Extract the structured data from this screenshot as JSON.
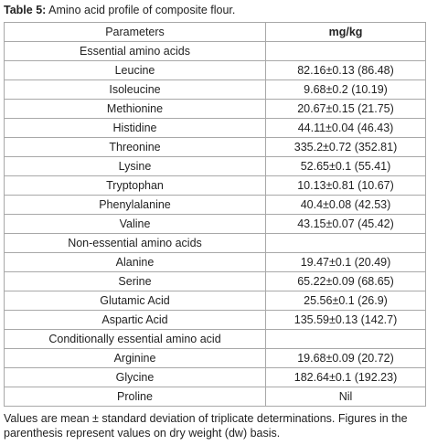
{
  "caption": {
    "label": "Table 5:",
    "text": "Amino acid profile of composite flour."
  },
  "table": {
    "header": [
      "Parameters",
      "mg/kg"
    ],
    "sections": [
      {
        "title": "Essential amino acids",
        "rows": [
          [
            "Leucine",
            "82.16±0.13 (86.48)"
          ],
          [
            "Isoleucine",
            "9.68±0.2 (10.19)"
          ],
          [
            "Methionine",
            "20.67±0.15 (21.75)"
          ],
          [
            "Histidine",
            "44.11±0.04 (46.43)"
          ],
          [
            "Threonine",
            "335.2±0.72 (352.81)"
          ],
          [
            "Lysine",
            "52.65±0.1 (55.41)"
          ],
          [
            "Tryptophan",
            "10.13±0.81 (10.67)"
          ],
          [
            "Phenylalanine",
            "40.4±0.08 (42.53)"
          ],
          [
            "Valine",
            "43.15±0.07 (45.42)"
          ]
        ]
      },
      {
        "title": "Non-essential amino acids",
        "rows": [
          [
            "Alanine",
            "19.47±0.1 (20.49)"
          ],
          [
            "Serine",
            "65.22±0.09 (68.65)"
          ],
          [
            "Glutamic Acid",
            "25.56±0.1 (26.9)"
          ],
          [
            "Aspartic Acid",
            "135.59±0.13 (142.7)"
          ]
        ]
      },
      {
        "title": "Conditionally essential amino acid",
        "rows": [
          [
            "Arginine",
            "19.68±0.09 (20.72)"
          ],
          [
            "Glycine",
            "182.64±0.1 (192.23)"
          ],
          [
            "Proline",
            "Nil"
          ]
        ]
      }
    ]
  },
  "footnote": "Values are mean ± standard deviation of triplicate determinations. Figures in the parenthesis represent values on dry weight (dw) basis."
}
